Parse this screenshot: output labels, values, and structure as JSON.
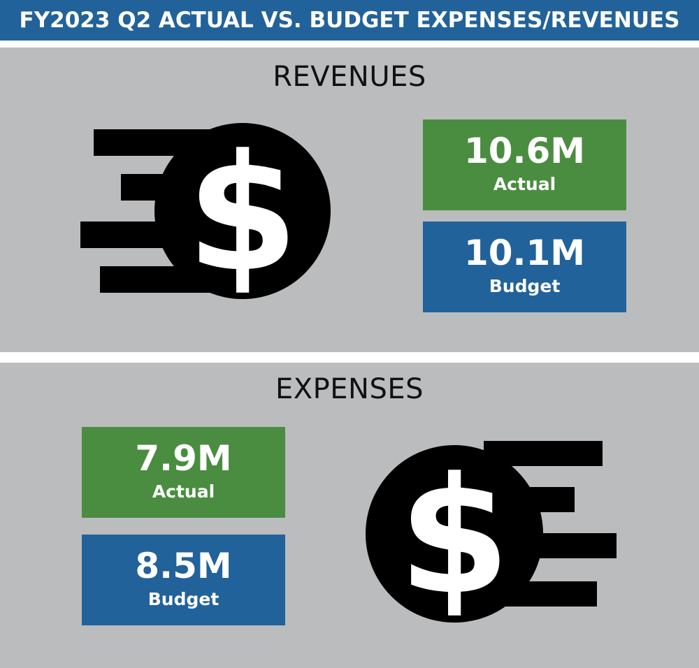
{
  "header": {
    "title": "FY2023 Q2 ACTUAL VS. BUDGET EXPENSES/REVENUES",
    "color": "#22629a"
  },
  "revenues": {
    "title": "REVENUES",
    "icon": "fast-dollar-coin-icon",
    "actual": {
      "value": "10.6M",
      "label": "Actual",
      "color": "#4a8d40"
    },
    "budget": {
      "value": "10.1M",
      "label": "Budget",
      "color": "#22629a"
    }
  },
  "expenses": {
    "title": "EXPENSES",
    "icon": "fast-dollar-coin-icon",
    "actual": {
      "value": "7.9M",
      "label": "Actual",
      "color": "#4a8d40"
    },
    "budget": {
      "value": "8.5M",
      "label": "Budget",
      "color": "#22629a"
    }
  },
  "panel_color": "#bbbcbe"
}
